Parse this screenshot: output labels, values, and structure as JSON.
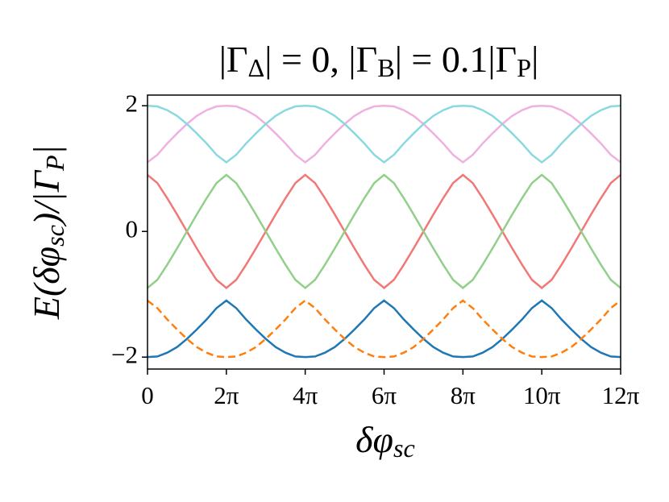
{
  "chart_data": {
    "type": "line",
    "title": "|Γ_Δ| = 0, |Γ_B| = 0.1|Γ_P|",
    "x_label": "δφ_sc",
    "y_label": "E(δφ_sc)/|Γ_P|",
    "x": [
      0,
      0.25,
      0.5,
      0.75,
      1,
      1.25,
      1.5,
      1.75,
      2,
      2.25,
      2.5,
      2.75,
      3,
      3.25,
      3.5,
      3.75,
      4,
      4.25,
      4.5,
      4.75,
      5,
      5.25,
      5.5,
      5.75,
      6,
      6.25,
      6.5,
      6.75,
      7,
      7.25,
      7.5,
      7.75,
      8,
      8.25,
      8.5,
      8.75,
      9,
      9.25,
      9.5,
      9.75,
      10,
      10.25,
      10.5,
      10.75,
      11,
      11.25,
      11.5,
      11.75,
      12
    ],
    "series": [
      {
        "color": "#1f77b4",
        "linestyle": "solid",
        "values": [
          -2,
          -1.99,
          -1.93,
          -1.84,
          -1.71,
          -1.56,
          -1.4,
          -1.22,
          -1.1,
          -1.22,
          -1.4,
          -1.56,
          -1.71,
          -1.84,
          -1.93,
          -1.99,
          -2,
          -1.99,
          -1.93,
          -1.84,
          -1.71,
          -1.56,
          -1.4,
          -1.22,
          -1.1,
          -1.22,
          -1.4,
          -1.56,
          -1.71,
          -1.84,
          -1.93,
          -1.99,
          -2,
          -1.99,
          -1.93,
          -1.84,
          -1.71,
          -1.56,
          -1.4,
          -1.22,
          -1.1,
          -1.22,
          -1.4,
          -1.56,
          -1.71,
          -1.84,
          -1.93,
          -1.99,
          -2
        ]
      },
      {
        "color": "#ff7f0e",
        "linestyle": "dashed",
        "values": [
          -1.1,
          -1.22,
          -1.4,
          -1.56,
          -1.71,
          -1.84,
          -1.93,
          -1.99,
          -2,
          -1.99,
          -1.93,
          -1.84,
          -1.71,
          -1.56,
          -1.4,
          -1.22,
          -1.1,
          -1.22,
          -1.4,
          -1.56,
          -1.71,
          -1.84,
          -1.93,
          -1.99,
          -2,
          -1.99,
          -1.93,
          -1.84,
          -1.71,
          -1.56,
          -1.4,
          -1.22,
          -1.1,
          -1.22,
          -1.4,
          -1.56,
          -1.71,
          -1.84,
          -1.93,
          -1.99,
          -2,
          -1.99,
          -1.93,
          -1.84,
          -1.71,
          -1.56,
          -1.4,
          -1.22,
          -1.1
        ]
      },
      {
        "color": "#f27777",
        "linestyle": "solid",
        "values": [
          0.9,
          0.77,
          0.53,
          0.27,
          0,
          -0.27,
          -0.53,
          -0.77,
          -0.9,
          -0.77,
          -0.53,
          -0.27,
          0,
          0.27,
          0.53,
          0.77,
          0.9,
          0.77,
          0.53,
          0.27,
          0,
          -0.27,
          -0.53,
          -0.77,
          -0.9,
          -0.77,
          -0.53,
          -0.27,
          0,
          0.27,
          0.53,
          0.77,
          0.9,
          0.77,
          0.53,
          0.27,
          0,
          -0.27,
          -0.53,
          -0.77,
          -0.9,
          -0.77,
          -0.53,
          -0.27,
          0,
          0.27,
          0.53,
          0.77,
          0.9
        ]
      },
      {
        "color": "#92cf8a",
        "linestyle": "solid",
        "values": [
          -0.9,
          -0.77,
          -0.53,
          -0.27,
          0,
          0.27,
          0.53,
          0.77,
          0.9,
          0.77,
          0.53,
          0.27,
          0,
          -0.27,
          -0.53,
          -0.77,
          -0.9,
          -0.77,
          -0.53,
          -0.27,
          0,
          0.27,
          0.53,
          0.77,
          0.9,
          0.77,
          0.53,
          0.27,
          0,
          -0.27,
          -0.53,
          -0.77,
          -0.9,
          -0.77,
          -0.53,
          -0.27,
          0,
          0.27,
          0.53,
          0.77,
          0.9,
          0.77,
          0.53,
          0.27,
          0,
          -0.27,
          -0.53,
          -0.77,
          -0.9
        ]
      },
      {
        "color": "#eeb1e0",
        "linestyle": "solid",
        "values": [
          1.1,
          1.22,
          1.4,
          1.56,
          1.71,
          1.84,
          1.93,
          1.99,
          2,
          1.99,
          1.93,
          1.84,
          1.71,
          1.56,
          1.4,
          1.22,
          1.1,
          1.22,
          1.4,
          1.56,
          1.71,
          1.84,
          1.93,
          1.99,
          2,
          1.99,
          1.93,
          1.84,
          1.71,
          1.56,
          1.4,
          1.22,
          1.1,
          1.22,
          1.4,
          1.56,
          1.71,
          1.84,
          1.93,
          1.99,
          2,
          1.99,
          1.93,
          1.84,
          1.71,
          1.56,
          1.4,
          1.22,
          1.1
        ]
      },
      {
        "color": "#8ad9e0",
        "linestyle": "solid",
        "values": [
          2,
          1.99,
          1.93,
          1.84,
          1.71,
          1.56,
          1.4,
          1.22,
          1.1,
          1.22,
          1.4,
          1.56,
          1.71,
          1.84,
          1.93,
          1.99,
          2,
          1.99,
          1.93,
          1.84,
          1.71,
          1.56,
          1.4,
          1.22,
          1.1,
          1.22,
          1.4,
          1.56,
          1.71,
          1.84,
          1.93,
          1.99,
          2,
          1.99,
          1.93,
          1.84,
          1.71,
          1.56,
          1.4,
          1.22,
          1.1,
          1.22,
          1.4,
          1.56,
          1.71,
          1.84,
          1.93,
          1.99,
          2
        ]
      }
    ],
    "xlim": [
      0,
      12
    ],
    "xticks": [
      0,
      {
        "value": 2,
        "label": "2π"
      },
      {
        "value": 4,
        "label": "4π"
      },
      {
        "value": 6,
        "label": "6π"
      },
      {
        "value": 8,
        "label": "8π"
      },
      {
        "value": 10,
        "label": "10π"
      },
      {
        "value": 12,
        "label": "12π"
      }
    ],
    "ylim": [
      -2.19,
      2.17
    ],
    "yticks": [
      {
        "value": -2,
        "label": "−2"
      },
      0,
      2
    ],
    "grid": false
  }
}
